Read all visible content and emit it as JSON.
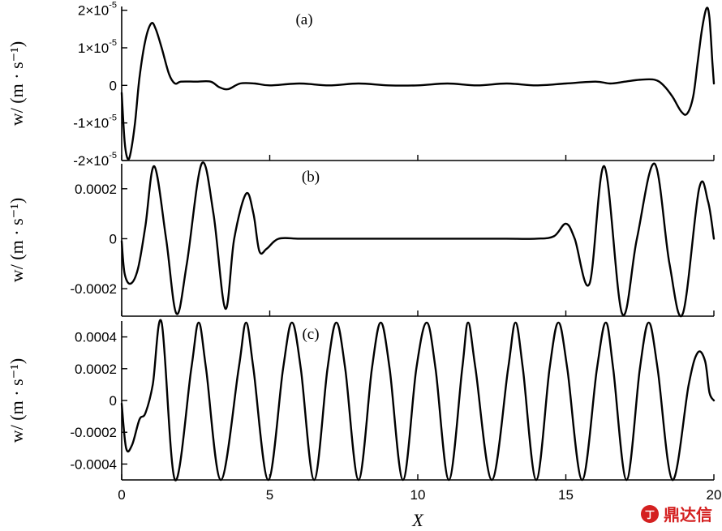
{
  "watermark": {
    "text": "鼎达信"
  },
  "chart_data": [
    {
      "type": "line",
      "panel_label": "(a)",
      "ylabel": "w/ (m · s⁻¹)",
      "xlim": [
        0,
        20
      ],
      "ylim": [
        -2e-05,
        2.1e-05
      ],
      "ytick_values": [
        2e-05,
        1e-05,
        0,
        -1e-05,
        -2e-05
      ],
      "ytick_labels": [
        {
          "m": "2×10",
          "e": "-5"
        },
        {
          "m": "1×10",
          "e": "-5"
        },
        {
          "m": "0",
          "e": ""
        },
        {
          "m": "-1×10",
          "e": "-5"
        },
        {
          "m": "-2×10",
          "e": "-5"
        }
      ],
      "series": [
        {
          "x": [
            0,
            0.1,
            0.2,
            0.3,
            0.45,
            0.6,
            0.8,
            1.0,
            1.15,
            1.35,
            1.6,
            1.8,
            2.0,
            2.5,
            3.0,
            3.3,
            3.6,
            4.0,
            4.5,
            5.0,
            6,
            7,
            8,
            9,
            10,
            11,
            12,
            13,
            14,
            15,
            16,
            16.5,
            17,
            17.5,
            18,
            18.3,
            18.6,
            18.9,
            19.1,
            19.3,
            19.45,
            19.6,
            19.75,
            19.85,
            19.95,
            20.0
          ],
          "y": [
            -2e-06,
            -1.5e-05,
            -1.95e-05,
            -1.8e-05,
            -1e-05,
            2e-06,
            1.2e-05,
            1.65e-05,
            1.5e-05,
            1e-05,
            3e-06,
            5e-07,
            1e-06,
            1e-06,
            1e-06,
            -5e-07,
            -1e-06,
            5e-07,
            5e-07,
            0.0,
            5e-07,
            0.0,
            5e-07,
            0.0,
            0.0,
            5e-07,
            0.0,
            5e-07,
            0.0,
            5e-07,
            1e-06,
            5e-07,
            1e-06,
            1.5e-06,
            1.5e-06,
            0.0,
            -3e-06,
            -7e-06,
            -7.5e-06,
            -3e-06,
            6e-06,
            1.5e-05,
            2.05e-05,
            1.8e-05,
            6e-06,
            5e-07
          ]
        }
      ]
    },
    {
      "type": "line",
      "panel_label": "(b)",
      "ylabel": "w/ (m · s⁻¹)",
      "xlim": [
        0,
        20
      ],
      "ylim": [
        -0.00031,
        0.0003
      ],
      "ytick_values": [
        0.0002,
        0,
        -0.0002
      ],
      "ytick_labels": [
        {
          "m": "0.0002",
          "e": ""
        },
        {
          "m": "0",
          "e": ""
        },
        {
          "m": "-0.0002",
          "e": ""
        }
      ],
      "series": [
        {
          "x": [
            0,
            0.1,
            0.3,
            0.55,
            0.8,
            1.1,
            1.5,
            1.85,
            2.2,
            2.7,
            3.1,
            3.5,
            3.8,
            4.2,
            4.45,
            4.65,
            4.9,
            5.3,
            6,
            7,
            8,
            9,
            10,
            11,
            12,
            13,
            14,
            14.6,
            15.0,
            15.3,
            15.8,
            16.3,
            16.9,
            17.4,
            18.0,
            18.5,
            18.95,
            19.5,
            19.8,
            20.0
          ],
          "y": [
            -1e-05,
            -0.00014,
            -0.00018,
            -0.00012,
            5e-05,
            0.00029,
            0.0,
            -0.0003,
            -0.0001,
            0.0003,
            0.0001,
            -0.00028,
            0.0,
            0.00018,
            0.0001,
            -5e-05,
            -4e-05,
            0.0,
            0.0,
            0.0,
            0.0,
            0.0,
            0.0,
            0.0,
            0.0,
            0.0,
            0.0,
            1e-05,
            6e-05,
            0.0,
            -0.00018,
            0.00029,
            -0.0003,
            0.0,
            0.0003,
            -0.0001,
            -0.0003,
            0.0002,
            0.00015,
            0.0
          ]
        }
      ]
    },
    {
      "type": "line",
      "panel_label": "(c)",
      "ylabel": "w/ (m · s⁻¹)",
      "xlabel": "X",
      "xlim": [
        0,
        20
      ],
      "ylim": [
        -0.0005,
        0.0005
      ],
      "xtick_values": [
        0,
        5,
        10,
        15,
        20
      ],
      "xtick_labels": [
        "0",
        "5",
        "10",
        "15",
        "20"
      ],
      "ytick_values": [
        0.0004,
        0.0002,
        0,
        -0.0002,
        -0.0004
      ],
      "ytick_labels": [
        {
          "m": "0.0004",
          "e": ""
        },
        {
          "m": "0.0002",
          "e": ""
        },
        {
          "m": "0",
          "e": ""
        },
        {
          "m": "-0.0002",
          "e": ""
        },
        {
          "m": "-0.0004",
          "e": ""
        }
      ],
      "series": [
        {
          "x": [
            0,
            0.15,
            0.35,
            0.6,
            0.8,
            1.05,
            1.35,
            1.8,
            2.35,
            2.6,
            2.85,
            3.35,
            3.95,
            4.2,
            4.45,
            4.95,
            5.45,
            5.75,
            6.05,
            6.5,
            6.95,
            7.25,
            7.55,
            8.0,
            8.45,
            8.75,
            9.05,
            9.5,
            9.95,
            10.3,
            10.6,
            11.05,
            11.5,
            11.7,
            11.95,
            12.5,
            13.05,
            13.3,
            13.55,
            14.0,
            14.45,
            14.75,
            15.05,
            15.55,
            16.05,
            16.35,
            16.6,
            17.05,
            17.5,
            17.8,
            18.1,
            18.6,
            19.15,
            19.45,
            19.7,
            19.85,
            20.0
          ],
          "y": [
            -2e-05,
            -0.0003,
            -0.00028,
            -0.00012,
            -8e-05,
            0.0001,
            0.00049,
            -0.0005,
            0.0002,
            0.00049,
            0.0002,
            -0.0005,
            0.0002,
            0.00049,
            0.0002,
            -0.0005,
            0.0002,
            0.00049,
            0.0002,
            -0.0005,
            0.0002,
            0.00049,
            0.0002,
            -0.0005,
            0.0002,
            0.00049,
            0.0002,
            -0.0005,
            0.0002,
            0.00049,
            0.0002,
            -0.0005,
            0.0002,
            0.00049,
            0.0002,
            -0.0005,
            0.0002,
            0.00049,
            0.0002,
            -0.0005,
            0.0002,
            0.00049,
            0.0002,
            -0.0005,
            0.0002,
            0.00049,
            0.0002,
            -0.0005,
            0.0002,
            0.00049,
            0.0002,
            -0.0005,
            0.0001,
            0.0003,
            0.00025,
            5e-05,
            0.0
          ]
        }
      ]
    }
  ]
}
